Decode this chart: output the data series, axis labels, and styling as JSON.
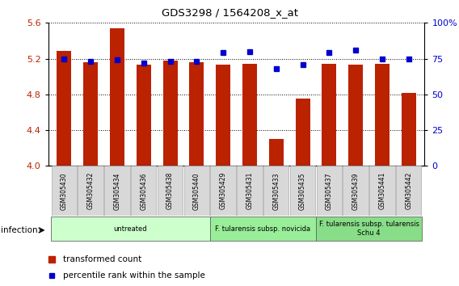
{
  "title": "GDS3298 / 1564208_x_at",
  "samples": [
    "GSM305430",
    "GSM305432",
    "GSM305434",
    "GSM305436",
    "GSM305438",
    "GSM305440",
    "GSM305429",
    "GSM305431",
    "GSM305433",
    "GSM305435",
    "GSM305437",
    "GSM305439",
    "GSM305441",
    "GSM305442"
  ],
  "bar_values": [
    5.29,
    5.16,
    5.54,
    5.13,
    5.18,
    5.16,
    5.13,
    5.14,
    4.3,
    4.75,
    5.14,
    5.13,
    5.14,
    4.82
  ],
  "dot_values": [
    75,
    73,
    74,
    72,
    73,
    73,
    79,
    80,
    68,
    71,
    79,
    81,
    75,
    75
  ],
  "bar_color": "#BB2200",
  "dot_color": "#0000CC",
  "ylim_left": [
    4.0,
    5.6
  ],
  "ylim_right": [
    0,
    100
  ],
  "yticks_left": [
    4.0,
    4.4,
    4.8,
    5.2,
    5.6
  ],
  "yticks_right": [
    0,
    25,
    50,
    75,
    100
  ],
  "groups": [
    {
      "label": "untreated",
      "start": 0,
      "end": 6,
      "color": "#CCFFCC"
    },
    {
      "label": "F. tularensis subsp. novicida",
      "start": 6,
      "end": 10,
      "color": "#99EE99"
    },
    {
      "label": "F. tularensis subsp. tularensis\nSchu 4",
      "start": 10,
      "end": 14,
      "color": "#88DD88"
    }
  ],
  "infection_label": "infection",
  "legend_bar_label": "transformed count",
  "legend_dot_label": "percentile rank within the sample",
  "grid_color": "#000000"
}
